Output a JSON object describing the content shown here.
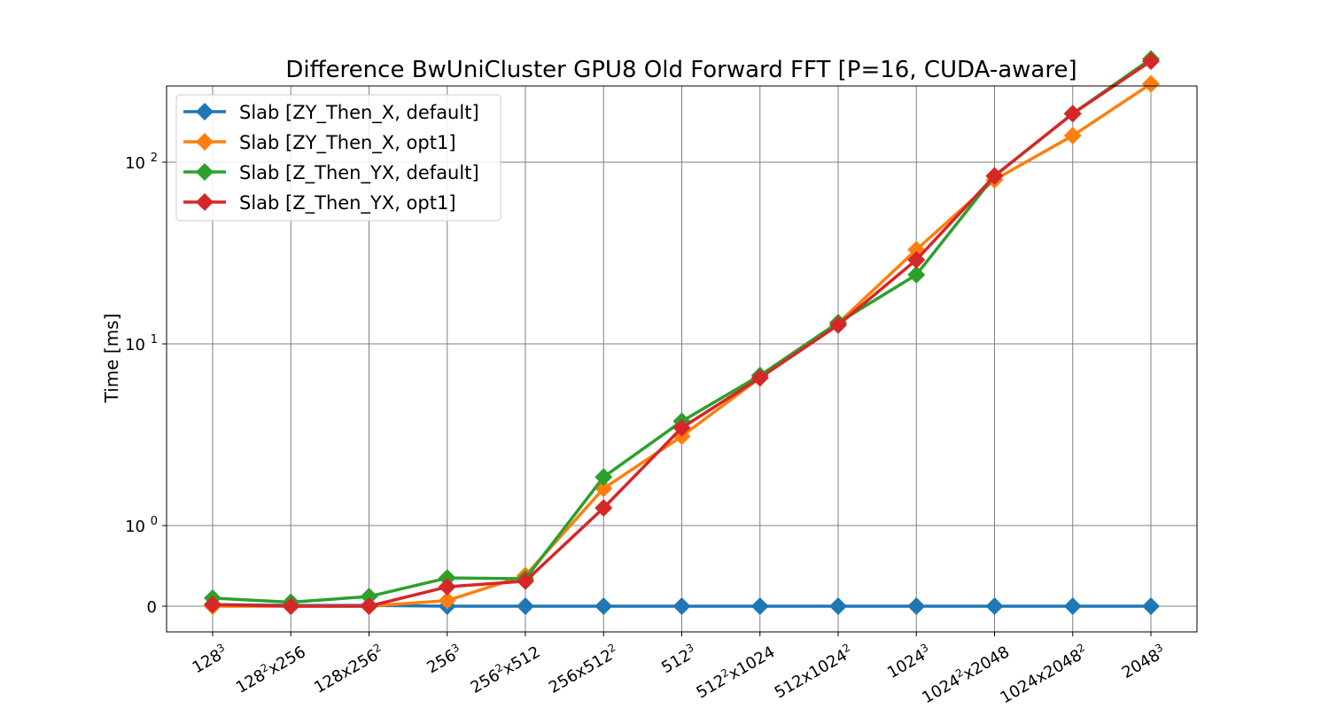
{
  "chart_data": {
    "type": "line",
    "title": "Difference BwUniCluster GPU8 Old Forward FFT [P=16, CUDA-aware]",
    "xlabel": "",
    "ylabel": "Time [ms]",
    "yscale": "symlog",
    "ylim": [
      -0.3,
      500
    ],
    "yticks": [
      {
        "value": 0,
        "base": "0",
        "exp": ""
      },
      {
        "value": 1,
        "base": "10",
        "exp": "0"
      },
      {
        "value": 10,
        "base": "10",
        "exp": "1"
      },
      {
        "value": 100,
        "base": "10",
        "exp": "2"
      }
    ],
    "categories": [
      {
        "base": "128",
        "sup": "3",
        "rest": "",
        "sup2": ""
      },
      {
        "base": "128",
        "sup": "2",
        "rest": "x256",
        "sup2": ""
      },
      {
        "base": "128x256",
        "sup": "2",
        "rest": "",
        "sup2": ""
      },
      {
        "base": "256",
        "sup": "3",
        "rest": "",
        "sup2": ""
      },
      {
        "base": "256",
        "sup": "2",
        "rest": "x512",
        "sup2": ""
      },
      {
        "base": "256x512",
        "sup": "2",
        "rest": "",
        "sup2": ""
      },
      {
        "base": "512",
        "sup": "3",
        "rest": "",
        "sup2": ""
      },
      {
        "base": "512",
        "sup": "2",
        "rest": "x1024",
        "sup2": ""
      },
      {
        "base": "512x1024",
        "sup": "2",
        "rest": "",
        "sup2": ""
      },
      {
        "base": "1024",
        "sup": "3",
        "rest": "",
        "sup2": ""
      },
      {
        "base": "1024",
        "sup": "2",
        "rest": "x2048",
        "sup2": ""
      },
      {
        "base": "1024x2048",
        "sup": "2",
        "rest": "",
        "sup2": ""
      },
      {
        "base": "2048",
        "sup": "3",
        "rest": "",
        "sup2": ""
      }
    ],
    "series": [
      {
        "name": "Slab [ZY_Then_X, default]",
        "color": "#1f77b4",
        "values": [
          0.02,
          0.01,
          0.01,
          0.0,
          0.0,
          0.0,
          0.0,
          0.0,
          0.0,
          0.0,
          0.0,
          0.0,
          0.0
        ]
      },
      {
        "name": "Slab [ZY_Then_X, opt1]",
        "color": "#ff7f0e",
        "values": [
          0.0,
          0.0,
          0.0,
          0.07,
          0.38,
          1.6,
          3.1,
          6.5,
          13,
          33,
          80,
          140,
          270
        ]
      },
      {
        "name": "Slab [Z_Then_YX, default]",
        "color": "#2ca02c",
        "values": [
          0.1,
          0.05,
          0.12,
          0.35,
          0.34,
          1.85,
          3.75,
          6.7,
          13.1,
          24,
          84,
          185,
          370
        ]
      },
      {
        "name": "Slab [Z_Then_YX, opt1]",
        "color": "#d62728",
        "values": [
          0.02,
          0.0,
          0.0,
          0.24,
          0.31,
          1.25,
          3.45,
          6.5,
          12.7,
          29,
          84,
          185,
          360
        ]
      }
    ],
    "grid": true,
    "legend_position": "top-left"
  }
}
